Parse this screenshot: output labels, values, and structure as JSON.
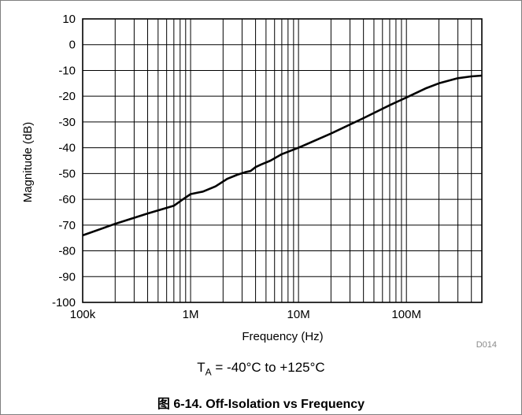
{
  "chart_data": {
    "type": "line",
    "title": "",
    "xlabel": "Frequency (Hz)",
    "ylabel": "Magnitude (dB)",
    "x_scale": "log",
    "xlim": [
      100000,
      500000000
    ],
    "ylim": [
      -100,
      10
    ],
    "grid": true,
    "x_tick_values": [
      100000,
      1000000,
      10000000,
      100000000
    ],
    "x_tick_labels": [
      "100k",
      "1M",
      "10M",
      "100M"
    ],
    "y_tick_values": [
      10,
      0,
      -10,
      -20,
      -30,
      -40,
      -50,
      -60,
      -70,
      -80,
      -90,
      -100
    ],
    "y_tick_labels": [
      "10",
      "0",
      "-10",
      "-20",
      "-30",
      "-40",
      "-50",
      "-60",
      "-70",
      "-80",
      "-90",
      "-100"
    ],
    "figure_id": "D014",
    "series": [
      {
        "color": "#000000",
        "x": [
          100000,
          200000,
          400000,
          700000,
          850000,
          1000000,
          1300000,
          1700000,
          2200000,
          2700000,
          3200000,
          3600000,
          4000000,
          4500000,
          5500000,
          7000000,
          10000000,
          20000000,
          40000000,
          70000000,
          100000000,
          150000000,
          200000000,
          300000000,
          400000000,
          500000000
        ],
        "y": [
          -74,
          -69.5,
          -65.5,
          -62.5,
          -60,
          -58,
          -57,
          -55,
          -52,
          -50.5,
          -49.5,
          -49,
          -47.5,
          -46.5,
          -45,
          -42.5,
          -40,
          -34.5,
          -28.5,
          -23.5,
          -20.5,
          -17,
          -15,
          -13,
          -12.3,
          -12
        ]
      }
    ]
  },
  "condition": {
    "symbol": "T",
    "subscript": "A",
    "text": " = -40°C to +125°C"
  },
  "caption": "图 6-14. Off-Isolation vs Frequency"
}
